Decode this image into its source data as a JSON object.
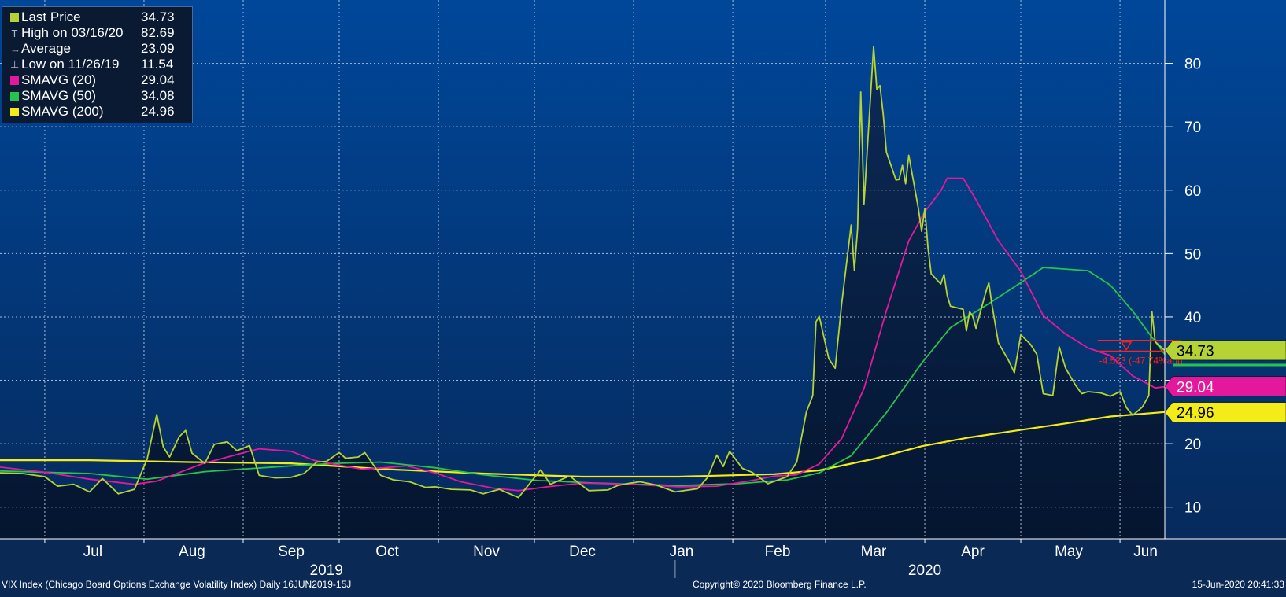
{
  "chart_data": {
    "type": "line",
    "title": "",
    "xlabel": "",
    "ylabel": "",
    "ylim": [
      5,
      90
    ],
    "y_ticks": [
      10,
      20,
      30,
      40,
      50,
      60,
      70,
      80
    ],
    "y_tick_labels": [
      "10",
      "20",
      "",
      "40",
      "50",
      "60",
      "70",
      "80"
    ],
    "grid": true,
    "x_start": "2019-06-17",
    "x_end": "2020-06-15",
    "month_labels": [
      {
        "label": "Jul",
        "date": "2019-07-16"
      },
      {
        "label": "Aug",
        "date": "2019-08-16"
      },
      {
        "label": "Sep",
        "date": "2019-09-16"
      },
      {
        "label": "Oct",
        "date": "2019-10-16"
      },
      {
        "label": "Nov",
        "date": "2019-11-16"
      },
      {
        "label": "Dec",
        "date": "2019-12-16"
      },
      {
        "label": "Jan",
        "date": "2020-01-16"
      },
      {
        "label": "Feb",
        "date": "2020-02-15"
      },
      {
        "label": "Mar",
        "date": "2020-03-16"
      },
      {
        "label": "Apr",
        "date": "2020-04-16"
      },
      {
        "label": "May",
        "date": "2020-05-16"
      },
      {
        "label": "Jun",
        "date": "2020-06-09"
      }
    ],
    "month_boundaries": [
      "2019-07-01",
      "2019-08-01",
      "2019-09-01",
      "2019-10-01",
      "2019-11-01",
      "2019-12-01",
      "2020-01-01",
      "2020-02-01",
      "2020-03-01",
      "2020-04-01",
      "2020-05-01",
      "2020-06-01"
    ],
    "year_labels": [
      {
        "label": "2019",
        "date": "2019-09-27"
      },
      {
        "label": "2020",
        "date": "2020-04-01"
      }
    ],
    "year_separator": "2020-01-14",
    "series": [
      {
        "name": "Last Price",
        "color": "#b5d334",
        "area": true,
        "points": [
          [
            "2019-06-17",
            15.4
          ],
          [
            "2019-06-24",
            15.3
          ],
          [
            "2019-07-01",
            14.8
          ],
          [
            "2019-07-05",
            13.3
          ],
          [
            "2019-07-10",
            13.6
          ],
          [
            "2019-07-15",
            12.4
          ],
          [
            "2019-07-19",
            14.5
          ],
          [
            "2019-07-24",
            12.1
          ],
          [
            "2019-07-29",
            12.8
          ],
          [
            "2019-08-02",
            17.6
          ],
          [
            "2019-08-05",
            24.6
          ],
          [
            "2019-08-07",
            19.5
          ],
          [
            "2019-08-09",
            17.9
          ],
          [
            "2019-08-12",
            21.1
          ],
          [
            "2019-08-14",
            22.1
          ],
          [
            "2019-08-16",
            18.5
          ],
          [
            "2019-08-20",
            16.9
          ],
          [
            "2019-08-23",
            19.9
          ],
          [
            "2019-08-27",
            20.3
          ],
          [
            "2019-08-30",
            18.9
          ],
          [
            "2019-09-03",
            19.7
          ],
          [
            "2019-09-06",
            15.0
          ],
          [
            "2019-09-11",
            14.6
          ],
          [
            "2019-09-16",
            14.7
          ],
          [
            "2019-09-20",
            15.3
          ],
          [
            "2019-09-24",
            17.1
          ],
          [
            "2019-09-27",
            17.2
          ],
          [
            "2019-10-01",
            18.6
          ],
          [
            "2019-10-03",
            17.7
          ],
          [
            "2019-10-07",
            17.9
          ],
          [
            "2019-10-09",
            18.6
          ],
          [
            "2019-10-14",
            15.0
          ],
          [
            "2019-10-18",
            14.3
          ],
          [
            "2019-10-23",
            14.0
          ],
          [
            "2019-10-28",
            13.1
          ],
          [
            "2019-10-31",
            13.2
          ],
          [
            "2019-11-05",
            12.8
          ],
          [
            "2019-11-11",
            12.7
          ],
          [
            "2019-11-15",
            12.1
          ],
          [
            "2019-11-20",
            12.8
          ],
          [
            "2019-11-26",
            11.5
          ],
          [
            "2019-12-03",
            15.9
          ],
          [
            "2019-12-06",
            13.6
          ],
          [
            "2019-12-12",
            14.9
          ],
          [
            "2019-12-18",
            12.6
          ],
          [
            "2019-12-24",
            12.7
          ],
          [
            "2019-12-27",
            13.4
          ],
          [
            "2019-12-31",
            13.8
          ],
          [
            "2020-01-03",
            14.0
          ],
          [
            "2020-01-08",
            13.5
          ],
          [
            "2020-01-14",
            12.4
          ],
          [
            "2020-01-21",
            12.9
          ],
          [
            "2020-01-24",
            14.6
          ],
          [
            "2020-01-27",
            18.2
          ],
          [
            "2020-01-29",
            16.4
          ],
          [
            "2020-01-31",
            18.8
          ],
          [
            "2020-02-04",
            16.1
          ],
          [
            "2020-02-07",
            15.5
          ],
          [
            "2020-02-12",
            13.7
          ],
          [
            "2020-02-18",
            14.8
          ],
          [
            "2020-02-21",
            17.1
          ],
          [
            "2020-02-24",
            25.0
          ],
          [
            "2020-02-26",
            27.6
          ],
          [
            "2020-02-27",
            39.2
          ],
          [
            "2020-02-28",
            40.1
          ],
          [
            "2020-03-02",
            33.4
          ],
          [
            "2020-03-04",
            31.9
          ],
          [
            "2020-03-06",
            41.9
          ],
          [
            "2020-03-09",
            54.5
          ],
          [
            "2020-03-10",
            47.3
          ],
          [
            "2020-03-11",
            53.9
          ],
          [
            "2020-03-12",
            75.5
          ],
          [
            "2020-03-13",
            57.8
          ],
          [
            "2020-03-16",
            82.7
          ],
          [
            "2020-03-17",
            75.9
          ],
          [
            "2020-03-18",
            76.5
          ],
          [
            "2020-03-19",
            72.0
          ],
          [
            "2020-03-20",
            66.0
          ],
          [
            "2020-03-23",
            61.6
          ],
          [
            "2020-03-24",
            61.7
          ],
          [
            "2020-03-25",
            63.9
          ],
          [
            "2020-03-26",
            61.0
          ],
          [
            "2020-03-27",
            65.5
          ],
          [
            "2020-03-30",
            57.1
          ],
          [
            "2020-03-31",
            53.5
          ],
          [
            "2020-04-01",
            57.1
          ],
          [
            "2020-04-02",
            50.9
          ],
          [
            "2020-04-03",
            46.8
          ],
          [
            "2020-04-06",
            45.2
          ],
          [
            "2020-04-07",
            46.7
          ],
          [
            "2020-04-08",
            43.4
          ],
          [
            "2020-04-09",
            41.7
          ],
          [
            "2020-04-13",
            41.2
          ],
          [
            "2020-04-14",
            37.8
          ],
          [
            "2020-04-15",
            40.8
          ],
          [
            "2020-04-16",
            40.1
          ],
          [
            "2020-04-17",
            38.2
          ],
          [
            "2020-04-20",
            43.8
          ],
          [
            "2020-04-21",
            45.4
          ],
          [
            "2020-04-22",
            41.9
          ],
          [
            "2020-04-24",
            35.9
          ],
          [
            "2020-04-27",
            33.3
          ],
          [
            "2020-04-29",
            31.2
          ],
          [
            "2020-05-01",
            37.2
          ],
          [
            "2020-05-04",
            35.7
          ],
          [
            "2020-05-06",
            34.1
          ],
          [
            "2020-05-08",
            27.9
          ],
          [
            "2020-05-11",
            27.6
          ],
          [
            "2020-05-13",
            35.3
          ],
          [
            "2020-05-15",
            31.9
          ],
          [
            "2020-05-18",
            29.3
          ],
          [
            "2020-05-20",
            27.9
          ],
          [
            "2020-05-22",
            28.2
          ],
          [
            "2020-05-26",
            28.0
          ],
          [
            "2020-05-29",
            27.5
          ],
          [
            "2020-06-01",
            28.2
          ],
          [
            "2020-06-03",
            25.7
          ],
          [
            "2020-06-05",
            24.5
          ],
          [
            "2020-06-08",
            25.8
          ],
          [
            "2020-06-10",
            27.6
          ],
          [
            "2020-06-11",
            40.8
          ],
          [
            "2020-06-12",
            36.1
          ],
          [
            "2020-06-15",
            34.7
          ]
        ]
      },
      {
        "name": "SMAVG (20)",
        "color": "#e4189c",
        "points": [
          [
            "2019-06-17",
            16.3
          ],
          [
            "2019-07-01",
            15.5
          ],
          [
            "2019-07-15",
            14.4
          ],
          [
            "2019-07-29",
            13.6
          ],
          [
            "2019-08-05",
            14.1
          ],
          [
            "2019-08-19",
            16.8
          ],
          [
            "2019-09-02",
            18.7
          ],
          [
            "2019-09-06",
            19.2
          ],
          [
            "2019-09-16",
            18.8
          ],
          [
            "2019-09-23",
            17.4
          ],
          [
            "2019-10-01",
            16.6
          ],
          [
            "2019-10-08",
            16.0
          ],
          [
            "2019-10-15",
            16.2
          ],
          [
            "2019-10-22",
            16.5
          ],
          [
            "2019-10-31",
            15.4
          ],
          [
            "2019-11-08",
            14.0
          ],
          [
            "2019-11-18",
            13.0
          ],
          [
            "2019-11-26",
            12.6
          ],
          [
            "2019-12-05",
            13.2
          ],
          [
            "2019-12-16",
            13.8
          ],
          [
            "2019-12-31",
            13.6
          ],
          [
            "2020-01-15",
            13.2
          ],
          [
            "2020-01-27",
            13.3
          ],
          [
            "2020-02-07",
            14.2
          ],
          [
            "2020-02-14",
            14.9
          ],
          [
            "2020-02-21",
            15.1
          ],
          [
            "2020-02-28",
            16.8
          ],
          [
            "2020-03-06",
            20.8
          ],
          [
            "2020-03-13",
            28.7
          ],
          [
            "2020-03-20",
            41.0
          ],
          [
            "2020-03-27",
            52.0
          ],
          [
            "2020-04-01",
            56.6
          ],
          [
            "2020-04-06",
            59.9
          ],
          [
            "2020-04-08",
            61.9
          ],
          [
            "2020-04-13",
            61.9
          ],
          [
            "2020-04-17",
            58.5
          ],
          [
            "2020-04-24",
            52.0
          ],
          [
            "2020-05-01",
            47.2
          ],
          [
            "2020-05-08",
            40.2
          ],
          [
            "2020-05-15",
            37.3
          ],
          [
            "2020-05-22",
            35.1
          ],
          [
            "2020-05-29",
            33.9
          ],
          [
            "2020-06-05",
            30.7
          ],
          [
            "2020-06-12",
            28.8
          ],
          [
            "2020-06-15",
            29.0
          ]
        ]
      },
      {
        "name": "SMAVG (50)",
        "color": "#27c34b",
        "points": [
          [
            "2019-06-17",
            15.7
          ],
          [
            "2019-07-15",
            15.3
          ],
          [
            "2019-08-02",
            14.4
          ],
          [
            "2019-08-20",
            15.6
          ],
          [
            "2019-09-16",
            16.5
          ],
          [
            "2019-09-30",
            16.9
          ],
          [
            "2019-10-14",
            17.1
          ],
          [
            "2019-10-31",
            16.2
          ],
          [
            "2019-11-15",
            15.1
          ],
          [
            "2019-12-02",
            14.2
          ],
          [
            "2019-12-20",
            13.8
          ],
          [
            "2020-01-15",
            13.4
          ],
          [
            "2020-02-03",
            13.7
          ],
          [
            "2020-02-18",
            14.3
          ],
          [
            "2020-02-28",
            15.4
          ],
          [
            "2020-03-09",
            18.1
          ],
          [
            "2020-03-20",
            24.9
          ],
          [
            "2020-03-31",
            32.7
          ],
          [
            "2020-04-09",
            38.3
          ],
          [
            "2020-04-21",
            42.1
          ],
          [
            "2020-05-01",
            45.4
          ],
          [
            "2020-05-08",
            47.8
          ],
          [
            "2020-05-22",
            47.3
          ],
          [
            "2020-05-29",
            45.0
          ],
          [
            "2020-06-05",
            40.9
          ],
          [
            "2020-06-12",
            36.1
          ],
          [
            "2020-06-15",
            34.1
          ]
        ]
      },
      {
        "name": "SMAVG (200)",
        "color": "#f4ec19",
        "points": [
          [
            "2019-06-17",
            17.4
          ],
          [
            "2019-07-15",
            17.4
          ],
          [
            "2019-08-15",
            17.1
          ],
          [
            "2019-09-16",
            16.9
          ],
          [
            "2019-10-15",
            16.0
          ],
          [
            "2019-11-15",
            15.3
          ],
          [
            "2019-12-16",
            14.8
          ],
          [
            "2020-01-15",
            14.8
          ],
          [
            "2020-02-14",
            15.2
          ],
          [
            "2020-02-28",
            15.8
          ],
          [
            "2020-03-16",
            17.6
          ],
          [
            "2020-03-31",
            19.6
          ],
          [
            "2020-04-15",
            21.0
          ],
          [
            "2020-04-30",
            22.1
          ],
          [
            "2020-05-15",
            23.2
          ],
          [
            "2020-05-29",
            24.3
          ],
          [
            "2020-06-15",
            25.0
          ]
        ]
      }
    ],
    "trend_annotation": {
      "upper": 36.3,
      "lower": 34.6,
      "start": "2020-05-25",
      "end": "2020-06-15",
      "marker_date": "2020-06-03",
      "label": "-4.523 (-47.74%ann.",
      "color": "#ff2020"
    },
    "price_tags": [
      {
        "value": 34.73,
        "label": "34.73",
        "bg": "#b5d334",
        "fg": "#000000",
        "pin": 34.7
      },
      {
        "value": 29.04,
        "label": "29.04",
        "bg": "#e4189c",
        "fg": "#ffffff",
        "pin": 29.0
      },
      {
        "value": 24.96,
        "label": "24.96",
        "bg": "#f4ec19",
        "fg": "#000000",
        "pin": 25.0
      }
    ]
  },
  "legend": [
    {
      "label": "Last Price",
      "value": "34.73",
      "kind": "swatch",
      "color": "#b5d334"
    },
    {
      "label": "High on 03/16/20",
      "value": "82.69",
      "kind": "marker",
      "glyph": "T"
    },
    {
      "label": "Average",
      "value": "23.09",
      "kind": "marker",
      "glyph": "→"
    },
    {
      "label": "Low on 11/26/19",
      "value": "11.54",
      "kind": "marker",
      "glyph": "⊥"
    },
    {
      "label": "SMAVG (20)",
      "value": "29.04",
      "kind": "swatch",
      "color": "#e4189c"
    },
    {
      "label": "SMAVG (50)",
      "value": "34.08",
      "kind": "swatch",
      "color": "#27c34b"
    },
    {
      "label": "SMAVG (200)",
      "value": "24.96",
      "kind": "swatch",
      "color": "#f4ec19"
    }
  ],
  "footer": {
    "left": "VIX Index (Chicago Board Options Exchange Volatility Index)  Daily 16JUN2019-15J",
    "center": "Copyright© 2020 Bloomberg Finance L.P.",
    "right": "15-Jun-2020 20:41:33"
  }
}
